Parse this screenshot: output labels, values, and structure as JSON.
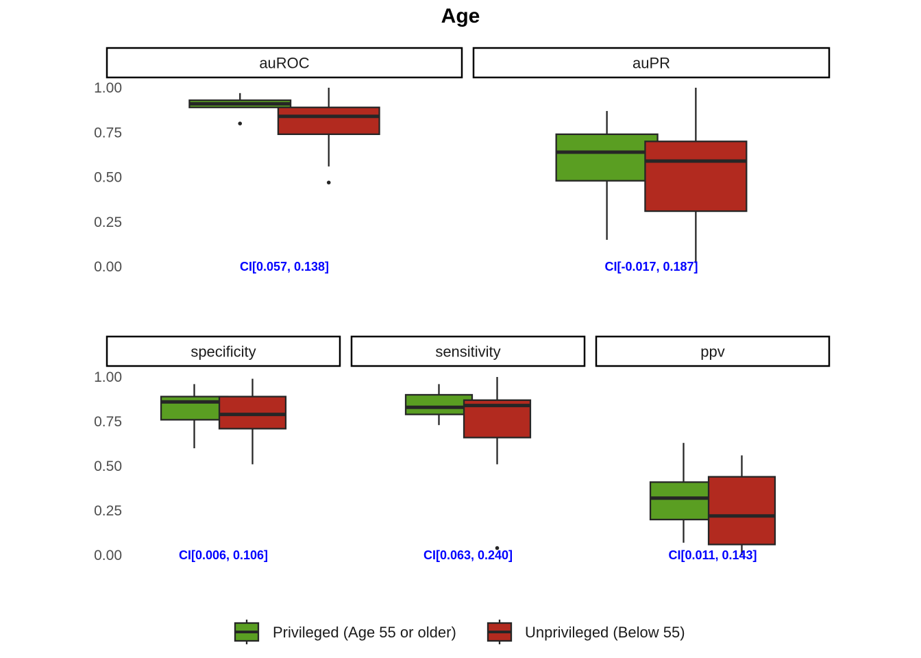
{
  "chart_data": {
    "type": "boxplot",
    "title": "Age",
    "ylim": [
      0,
      1
    ],
    "yticks": [
      "0.00",
      "0.25",
      "0.50",
      "0.75",
      "1.00"
    ],
    "grid": false,
    "legend_position": "bottom",
    "colors": {
      "Privileged (Age 55 or older)": "#5a9e22",
      "Unprivileged (Below 55)": "#b22a1f"
    },
    "legend": [
      {
        "name": "Privileged (Age 55 or older)",
        "color": "#5a9e22"
      },
      {
        "name": "Unprivileged (Below 55)",
        "color": "#b22a1f"
      }
    ],
    "panels": [
      {
        "label": "auROC",
        "ci": "CI[0.057, 0.138]",
        "boxes": [
          {
            "group": "Privileged (Age 55 or older)",
            "whisker_low": 0.89,
            "q1": 0.89,
            "median": 0.91,
            "q3": 0.93,
            "whisker_high": 0.97,
            "outliers": [
              0.8
            ]
          },
          {
            "group": "Unprivileged (Below 55)",
            "whisker_low": 0.56,
            "q1": 0.74,
            "median": 0.84,
            "q3": 0.89,
            "whisker_high": 1.0,
            "outliers": [
              0.47
            ]
          }
        ]
      },
      {
        "label": "auPR",
        "ci": "CI[-0.017, 0.187]",
        "boxes": [
          {
            "group": "Privileged (Age 55 or older)",
            "whisker_low": 0.15,
            "q1": 0.48,
            "median": 0.64,
            "q3": 0.74,
            "whisker_high": 0.87,
            "outliers": []
          },
          {
            "group": "Unprivileged (Below 55)",
            "whisker_low": 0.02,
            "q1": 0.31,
            "median": 0.59,
            "q3": 0.7,
            "whisker_high": 1.0,
            "outliers": []
          }
        ]
      },
      {
        "label": "specificity",
        "ci": "CI[0.006, 0.106]",
        "boxes": [
          {
            "group": "Privileged (Age 55 or older)",
            "whisker_low": 0.6,
            "q1": 0.76,
            "median": 0.86,
            "q3": 0.89,
            "whisker_high": 0.96,
            "outliers": []
          },
          {
            "group": "Unprivileged (Below 55)",
            "whisker_low": 0.51,
            "q1": 0.71,
            "median": 0.79,
            "q3": 0.89,
            "whisker_high": 0.99,
            "outliers": []
          }
        ]
      },
      {
        "label": "sensitivity",
        "ci": "CI[0.063, 0.240]",
        "boxes": [
          {
            "group": "Privileged (Age 55 or older)",
            "whisker_low": 0.73,
            "q1": 0.79,
            "median": 0.83,
            "q3": 0.9,
            "whisker_high": 0.96,
            "outliers": []
          },
          {
            "group": "Unprivileged (Below 55)",
            "whisker_low": 0.51,
            "q1": 0.66,
            "median": 0.84,
            "q3": 0.87,
            "whisker_high": 1.0,
            "outliers": [
              0.04
            ]
          }
        ]
      },
      {
        "label": "ppv",
        "ci": "CI[0.011, 0.143]",
        "boxes": [
          {
            "group": "Privileged (Age 55 or older)",
            "whisker_low": 0.07,
            "q1": 0.2,
            "median": 0.32,
            "q3": 0.41,
            "whisker_high": 0.63,
            "outliers": []
          },
          {
            "group": "Unprivileged (Below 55)",
            "whisker_low": 0.0,
            "q1": 0.06,
            "median": 0.22,
            "q3": 0.44,
            "whisker_high": 0.56,
            "outliers": []
          }
        ]
      }
    ]
  }
}
